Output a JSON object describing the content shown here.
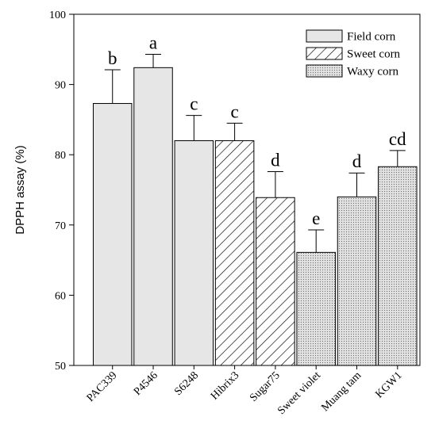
{
  "chart_data": {
    "type": "bar",
    "categories": [
      "PAC339",
      "P4546",
      "S6248",
      "Hibrix3",
      "Sugar75",
      "Sweet violet",
      "Muang tam",
      "KGW1"
    ],
    "values": [
      87.3,
      92.4,
      82.0,
      82.0,
      73.9,
      66.1,
      74.0,
      78.3
    ],
    "errors": [
      4.8,
      1.9,
      3.6,
      2.5,
      3.7,
      3.2,
      3.4,
      2.3
    ],
    "letters": [
      "b",
      "a",
      "c",
      "c",
      "d",
      "e",
      "d",
      "cd"
    ],
    "groups": [
      "Field corn",
      "Field corn",
      "Field corn",
      "Sweet corn",
      "Sweet corn",
      "Waxy corn",
      "Waxy corn",
      "Waxy corn"
    ],
    "series": [
      {
        "name": "Field corn",
        "pattern": "solid",
        "color": "#e6e6e6"
      },
      {
        "name": "Sweet corn",
        "pattern": "diagonal-hatch",
        "color": "#ffffff"
      },
      {
        "name": "Waxy corn",
        "pattern": "dots",
        "color": "#d9d9d9"
      }
    ],
    "ylabel": "DPPH assay (%)",
    "xlabel": "",
    "title": "",
    "ylim": [
      50,
      100
    ],
    "yticks": [
      50,
      60,
      70,
      80,
      90,
      100
    ],
    "grid": false,
    "legend_position": "top-right"
  }
}
